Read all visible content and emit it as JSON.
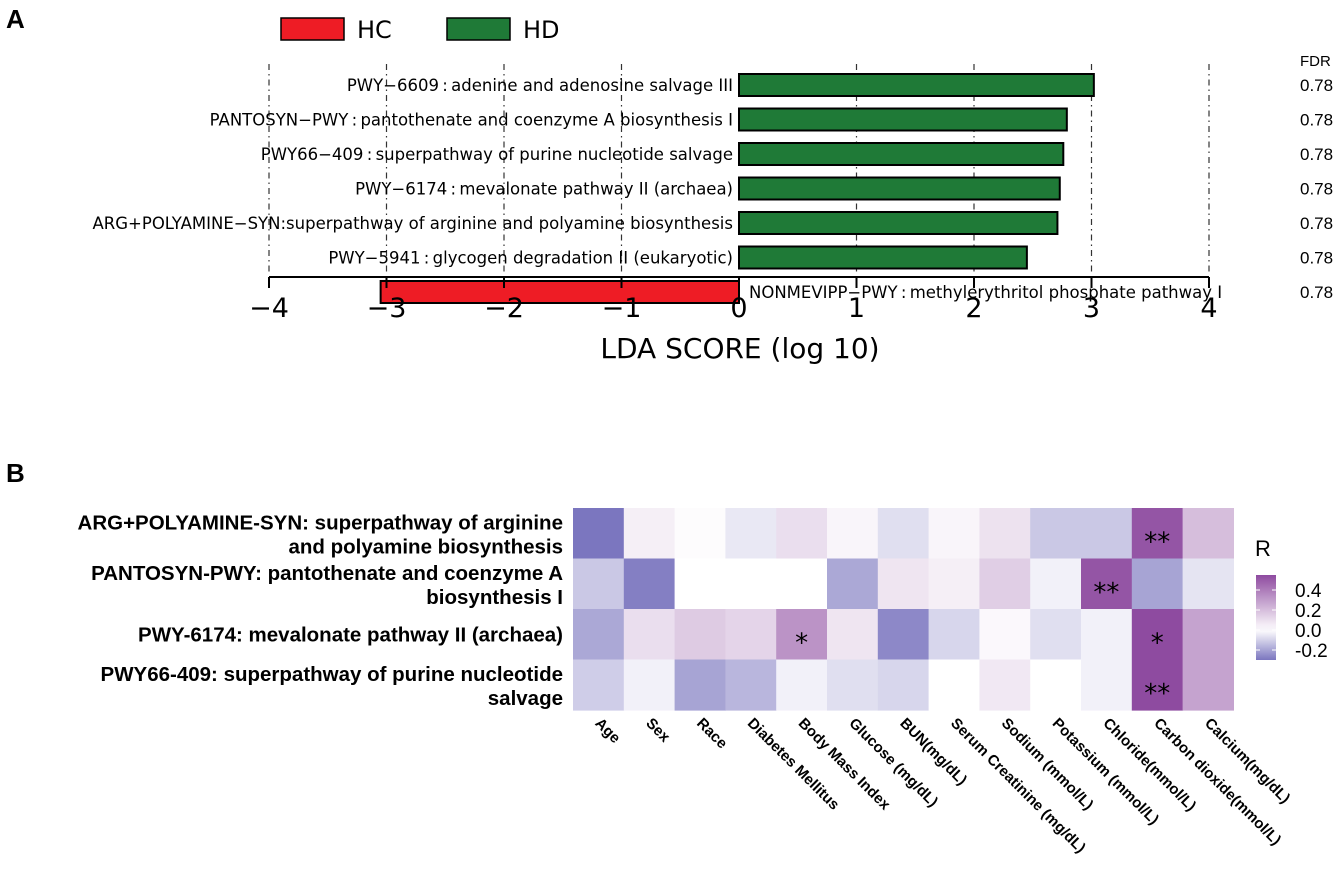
{
  "panel_a": {
    "letter": "A"
  },
  "panel_b": {
    "letter": "B"
  },
  "colors": {
    "HC": "#ee1c25",
    "HD": "#1f7a37",
    "low": "#7b76bf",
    "mid": "#ffffff",
    "high": "#8e4ba0"
  },
  "chart_data": [
    {
      "type": "bar",
      "orientation": "horizontal",
      "title": "",
      "xlabel": "LDA SCORE (log 10)",
      "ylabel": "",
      "xlim": [
        -4.2,
        4.2
      ],
      "xticks": [
        "−4",
        "−3",
        "−2",
        "−1",
        "0",
        "1",
        "2",
        "3",
        "4"
      ],
      "xtick_values": [
        -4,
        -3,
        -2,
        -1,
        0,
        1,
        2,
        3,
        4
      ],
      "grid": "vertical dashed",
      "legend": {
        "placement": "top-left",
        "entries": [
          {
            "name": "HC",
            "color": "#ee1c25"
          },
          {
            "name": "HD",
            "color": "#1f7a37"
          }
        ]
      },
      "fdr_header": "FDR",
      "categories": [
        "PWY−6609 : adenine and adenosine salvage III",
        "PANTOSYN−PWY : pantothenate and coenzyme A biosynthesis I",
        "PWY66−409 : superpathway of purine nucleotide salvage",
        "PWY−6174 : mevalonate pathway II (archaea)",
        "ARG+POLYAMINE−SYN:superpathway of arginine and polyamine biosynthesis",
        "PWY−5941 : glycogen degradation II (eukaryotic)",
        "NONMEVIPP−PWY : methylerythritol phosphate pathway I"
      ],
      "values": [
        3.02,
        2.79,
        2.76,
        2.73,
        2.71,
        2.45,
        -3.05
      ],
      "groups": [
        "HD",
        "HD",
        "HD",
        "HD",
        "HD",
        "HD",
        "HC"
      ],
      "fdr": [
        "0.78",
        "0.78",
        "0.78",
        "0.78",
        "0.78",
        "0.78",
        "0.78"
      ]
    },
    {
      "type": "heatmap",
      "title": "",
      "rows": [
        [
          "ARG+POLYAMINE-SYN: superpathway of arginine",
          "and polyamine biosynthesis"
        ],
        [
          "PANTOSYN-PWY: pantothenate and coenzyme A",
          "biosynthesis I"
        ],
        [
          "PWY-6174: mevalonate pathway II (archaea)"
        ],
        [
          "PWY66-409: superpathway of purine nucleotide",
          "salvage"
        ]
      ],
      "columns": [
        "Age",
        "Sex",
        "Race",
        "Diabetes Mellitus",
        "Body Mass Index",
        "Glucose (mg/dL)",
        "BUN(mg/dL)",
        "Serum Creatinine (mg/dL)",
        "Sodium (mmol/L)",
        "Potassium (mmol/L)",
        "Chloride(mmol/L)",
        "Carbon dioxide(mmol/L)",
        "Calcium(mg/dL)"
      ],
      "values": [
        [
          -0.3,
          0.05,
          0.01,
          -0.05,
          0.1,
          0.03,
          -0.07,
          0.03,
          0.09,
          -0.12,
          -0.12,
          0.52,
          0.2
        ],
        [
          -0.12,
          -0.28,
          0.0,
          0.0,
          0.0,
          -0.19,
          0.08,
          0.05,
          0.15,
          -0.03,
          0.52,
          -0.2,
          -0.06
        ],
        [
          -0.19,
          0.1,
          0.16,
          0.13,
          0.33,
          0.08,
          -0.26,
          -0.09,
          0.02,
          -0.07,
          -0.03,
          0.55,
          0.28
        ],
        [
          -0.11,
          -0.03,
          -0.2,
          -0.16,
          -0.03,
          -0.07,
          -0.09,
          0.0,
          0.07,
          0.0,
          -0.03,
          0.56,
          0.28
        ]
      ],
      "significance": [
        [
          "",
          "",
          "",
          "",
          "",
          "",
          "",
          "",
          "",
          "",
          "",
          "**",
          ""
        ],
        [
          "",
          "",
          "",
          "",
          "",
          "",
          "",
          "",
          "",
          "",
          "**",
          "",
          ""
        ],
        [
          "",
          "",
          "",
          "",
          "*",
          "",
          "",
          "",
          "",
          "",
          "",
          "*",
          ""
        ],
        [
          "",
          "",
          "",
          "",
          "",
          "",
          "",
          "",
          "",
          "",
          "",
          "**",
          ""
        ]
      ],
      "colorbar": {
        "title": "R",
        "ticks": [
          "0.4",
          "0.2",
          "0.0",
          "-0.2"
        ],
        "tick_values": [
          0.4,
          0.2,
          0.0,
          -0.2
        ],
        "range": [
          -0.3,
          0.55
        ],
        "placement": "right"
      }
    }
  ]
}
